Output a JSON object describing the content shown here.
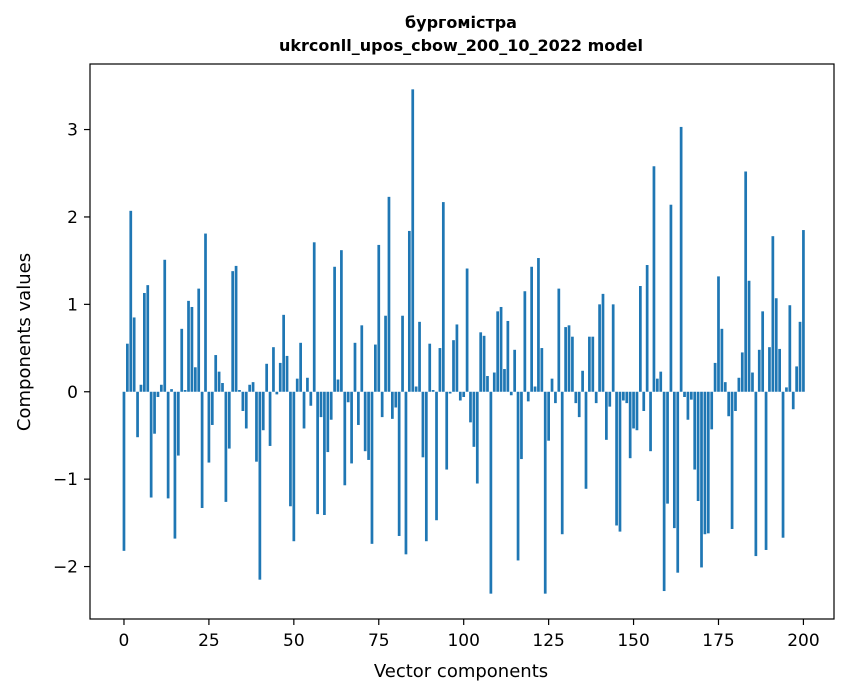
{
  "chart_data": {
    "type": "bar",
    "title": "бургомістра",
    "subtitle": "ukrconll_upos_cbow_200_10_2022 model",
    "xlabel": "Vector components",
    "ylabel": "Components values",
    "xlim": [
      -10,
      209
    ],
    "ylim": [
      -2.6,
      3.75
    ],
    "xticks": [
      0,
      25,
      50,
      75,
      100,
      125,
      150,
      175,
      200
    ],
    "xtick_labels": [
      "0",
      "25",
      "50",
      "75",
      "100",
      "125",
      "150",
      "175",
      "200"
    ],
    "yticks": [
      -2,
      -1,
      0,
      1,
      2,
      3
    ],
    "ytick_labels": [
      "−2",
      "−1",
      "0",
      "1",
      "2",
      "3"
    ],
    "grid": false,
    "bar_color": "#1f77b4",
    "values": [
      -1.82,
      0.55,
      2.07,
      0.85,
      -0.52,
      0.08,
      1.13,
      1.22,
      -1.21,
      -0.48,
      -0.06,
      0.08,
      1.51,
      -1.22,
      0.03,
      -1.68,
      -0.73,
      0.72,
      0.02,
      1.04,
      0.97,
      0.28,
      1.18,
      -1.33,
      1.81,
      -0.81,
      -0.38,
      0.42,
      0.23,
      0.1,
      -1.26,
      -0.65,
      1.38,
      1.44,
      0.02,
      -0.22,
      -0.42,
      0.08,
      0.11,
      -0.8,
      -2.15,
      -0.44,
      0.32,
      -0.62,
      0.51,
      -0.03,
      0.33,
      0.88,
      0.41,
      -1.31,
      -1.71,
      0.15,
      0.56,
      -0.42,
      0.16,
      -0.16,
      1.71,
      -1.4,
      -0.29,
      -1.41,
      -0.69,
      -0.32,
      1.43,
      0.14,
      1.62,
      -1.07,
      -0.12,
      -0.82,
      0.56,
      -0.38,
      0.76,
      -0.68,
      -0.78,
      -1.74,
      0.54,
      1.68,
      -0.29,
      0.87,
      2.23,
      -0.31,
      -0.18,
      -1.65,
      0.87,
      -1.86,
      1.84,
      3.46,
      0.06,
      0.8,
      -0.75,
      -1.71,
      0.55,
      0.02,
      -1.47,
      0.5,
      2.17,
      -0.89,
      -0.02,
      0.59,
      0.77,
      -0.1,
      -0.06,
      1.41,
      -0.35,
      -0.63,
      -1.05,
      0.68,
      0.64,
      0.18,
      -2.31,
      0.22,
      0.92,
      0.97,
      0.26,
      0.81,
      -0.04,
      0.48,
      -1.93,
      -0.77,
      1.15,
      -0.11,
      1.43,
      0.06,
      1.53,
      0.5,
      -2.31,
      -0.56,
      0.15,
      -0.13,
      1.18,
      -1.63,
      0.74,
      0.76,
      0.63,
      -0.13,
      -0.29,
      0.24,
      -1.11,
      0.63,
      0.63,
      -0.13,
      1.0,
      1.12,
      -0.55,
      -0.17,
      1.0,
      -1.53,
      -1.6,
      -0.1,
      -0.13,
      -0.76,
      -0.42,
      -0.44,
      1.21,
      -0.22,
      1.45,
      -0.68,
      2.58,
      0.15,
      0.23,
      -2.28,
      -1.28,
      2.14,
      -1.56,
      -2.07,
      3.03,
      -0.06,
      -0.32,
      -0.09,
      -0.89,
      -1.25,
      -2.01,
      -1.63,
      -1.62,
      -0.43,
      0.33,
      1.32,
      0.72,
      0.11,
      -0.28,
      -1.57,
      -0.22,
      0.16,
      0.45,
      2.52,
      1.27,
      0.22,
      -1.88,
      0.48,
      0.92,
      -1.81,
      0.51,
      1.78,
      1.07,
      0.49,
      -1.67,
      0.05,
      0.99,
      -0.2,
      0.29,
      0.8,
      1.85
    ]
  }
}
